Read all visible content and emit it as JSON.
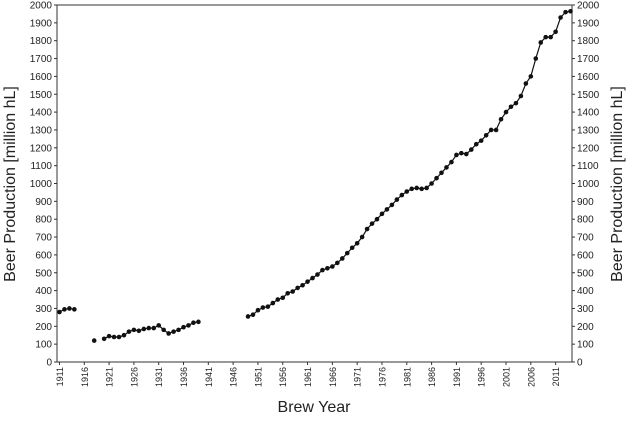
{
  "chart_data": {
    "type": "line",
    "x_label": "Brew Year",
    "y_label": "Beer Production [million hL]",
    "x": [
      1911,
      1912,
      1913,
      1914,
      1915,
      1916,
      1917,
      1918,
      1919,
      1920,
      1921,
      1922,
      1923,
      1924,
      1925,
      1926,
      1927,
      1928,
      1929,
      1930,
      1931,
      1932,
      1933,
      1934,
      1935,
      1936,
      1937,
      1938,
      1939,
      1940,
      1941,
      1942,
      1943,
      1944,
      1945,
      1946,
      1947,
      1948,
      1949,
      1950,
      1951,
      1952,
      1953,
      1954,
      1955,
      1956,
      1957,
      1958,
      1959,
      1960,
      1961,
      1962,
      1963,
      1964,
      1965,
      1966,
      1967,
      1968,
      1969,
      1970,
      1971,
      1972,
      1973,
      1974,
      1975,
      1976,
      1977,
      1978,
      1979,
      1980,
      1981,
      1982,
      1983,
      1984,
      1985,
      1986,
      1987,
      1988,
      1989,
      1990,
      1991,
      1992,
      1993,
      1994,
      1995,
      1996,
      1997,
      1998,
      1999,
      2000,
      2001,
      2002,
      2003,
      2004,
      2005,
      2006,
      2007,
      2008,
      2009,
      2010,
      2011,
      2012,
      2013,
      2014
    ],
    "values": [
      280,
      295,
      300,
      295,
      null,
      null,
      null,
      120,
      null,
      130,
      145,
      140,
      140,
      150,
      170,
      180,
      175,
      185,
      190,
      190,
      205,
      180,
      160,
      170,
      180,
      195,
      205,
      220,
      225,
      null,
      null,
      null,
      null,
      null,
      null,
      null,
      null,
      null,
      255,
      265,
      290,
      305,
      310,
      330,
      350,
      360,
      385,
      395,
      415,
      430,
      450,
      470,
      490,
      515,
      525,
      535,
      555,
      580,
      610,
      640,
      665,
      700,
      745,
      775,
      800,
      830,
      855,
      880,
      910,
      935,
      955,
      970,
      975,
      970,
      975,
      1000,
      1030,
      1060,
      1090,
      1120,
      1160,
      1170,
      1165,
      1190,
      1220,
      1240,
      1270,
      1300,
      1300,
      1360,
      1400,
      1430,
      1450,
      1490,
      1560,
      1600,
      1700,
      1790,
      1820,
      1820,
      1850,
      1930,
      1960,
      1965
    ],
    "color": "#111111",
    "xlim": [
      1910.5,
      2014.3
    ],
    "xticks": [
      1911,
      1916,
      1921,
      1926,
      1931,
      1936,
      1941,
      1946,
      1951,
      1956,
      1961,
      1966,
      1971,
      1976,
      1981,
      1986,
      1991,
      1996,
      2001,
      2006,
      2011
    ],
    "ylim": [
      0,
      2000
    ],
    "yticks": [
      0,
      100,
      200,
      300,
      400,
      500,
      600,
      700,
      800,
      900,
      1000,
      1100,
      1200,
      1300,
      1400,
      1500,
      1600,
      1700,
      1800,
      1900,
      2000
    ]
  }
}
